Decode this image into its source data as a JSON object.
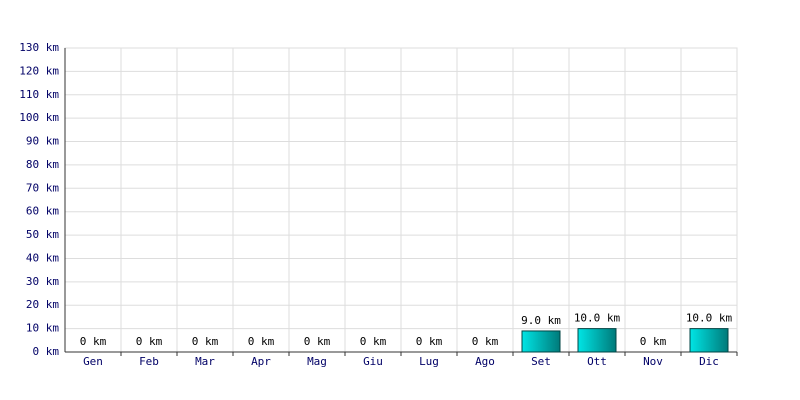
{
  "chart_data": {
    "type": "bar",
    "categories": [
      "Gen",
      "Feb",
      "Mar",
      "Apr",
      "Mag",
      "Giu",
      "Lug",
      "Ago",
      "Set",
      "Ott",
      "Nov",
      "Dic"
    ],
    "values": [
      0,
      0,
      0,
      0,
      0,
      0,
      0,
      0,
      9,
      10,
      0,
      10
    ],
    "value_labels": [
      "0 km",
      "0 km",
      "0 km",
      "0 km",
      "0 km",
      "0 km",
      "0 km",
      "0 km",
      "9.0 km",
      "10.0 km",
      "0 km",
      "10.0 km"
    ],
    "color": "#00e5e5",
    "ylim": [
      0,
      130
    ],
    "yticks": [
      {
        "value": 0,
        "label": "0 km"
      },
      {
        "value": 10,
        "label": "10 km"
      },
      {
        "value": 20,
        "label": "20 km"
      },
      {
        "value": 30,
        "label": "30 km"
      },
      {
        "value": 40,
        "label": "40 km"
      },
      {
        "value": 50,
        "label": "50 km"
      },
      {
        "value": 60,
        "label": "60 km"
      },
      {
        "value": 70,
        "label": "70 km"
      },
      {
        "value": 80,
        "label": "80 km"
      },
      {
        "value": 90,
        "label": "90 km"
      },
      {
        "value": 100,
        "label": "100 km"
      },
      {
        "value": 110,
        "label": "110 km"
      },
      {
        "value": 120,
        "label": "120 km"
      },
      {
        "value": 130,
        "label": "130 km"
      }
    ],
    "grid": true
  }
}
